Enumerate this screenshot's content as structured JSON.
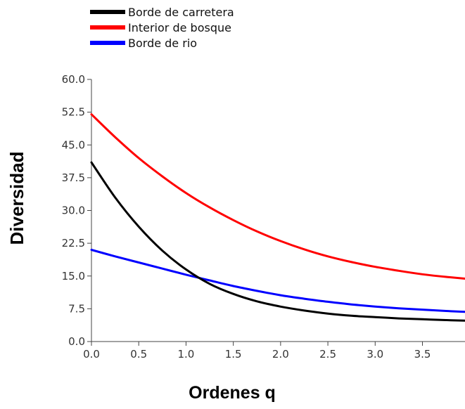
{
  "chart_data": {
    "type": "line",
    "xlabel": "Ordenes q",
    "ylabel": "Diversidad",
    "xlim": [
      0,
      3.95
    ],
    "ylim": [
      0,
      60
    ],
    "xticks": [
      "0.0",
      "0.5",
      "1.0",
      "1.5",
      "2.0",
      "2.5",
      "3.0",
      "3.5"
    ],
    "yticks": [
      "0.0",
      "7.5",
      "15.0",
      "22.5",
      "30.0",
      "37.5",
      "45.0",
      "52.5",
      "60.0"
    ],
    "grid": false,
    "legend_position": "top-left",
    "series": [
      {
        "name": "Borde de carretera",
        "color": "#000000",
        "x": [
          0.0,
          0.25,
          0.5,
          0.75,
          1.0,
          1.25,
          1.5,
          1.75,
          2.0,
          2.25,
          2.5,
          2.75,
          3.0,
          3.25,
          3.5,
          3.75,
          3.95
        ],
        "y": [
          41.0,
          33.0,
          26.3,
          20.8,
          16.5,
          13.2,
          10.9,
          9.2,
          8.0,
          7.1,
          6.4,
          5.9,
          5.6,
          5.3,
          5.1,
          4.9,
          4.8
        ]
      },
      {
        "name": "Interior de bosque",
        "color": "#ff0000",
        "x": [
          0.0,
          0.25,
          0.5,
          0.75,
          1.0,
          1.25,
          1.5,
          1.75,
          2.0,
          2.25,
          2.5,
          2.75,
          3.0,
          3.25,
          3.5,
          3.75,
          3.95
        ],
        "y": [
          52.0,
          46.8,
          42.0,
          37.8,
          34.0,
          30.7,
          27.8,
          25.2,
          23.0,
          21.1,
          19.5,
          18.2,
          17.1,
          16.2,
          15.4,
          14.8,
          14.4
        ]
      },
      {
        "name": "Borde de rio",
        "color": "#0000ff",
        "x": [
          0.0,
          0.25,
          0.5,
          0.75,
          1.0,
          1.25,
          1.5,
          1.75,
          2.0,
          2.25,
          2.5,
          2.75,
          3.0,
          3.25,
          3.5,
          3.75,
          3.95
        ],
        "y": [
          21.0,
          19.5,
          18.1,
          16.7,
          15.3,
          14.0,
          12.7,
          11.6,
          10.6,
          9.8,
          9.1,
          8.5,
          8.0,
          7.6,
          7.3,
          7.0,
          6.8
        ]
      }
    ]
  }
}
